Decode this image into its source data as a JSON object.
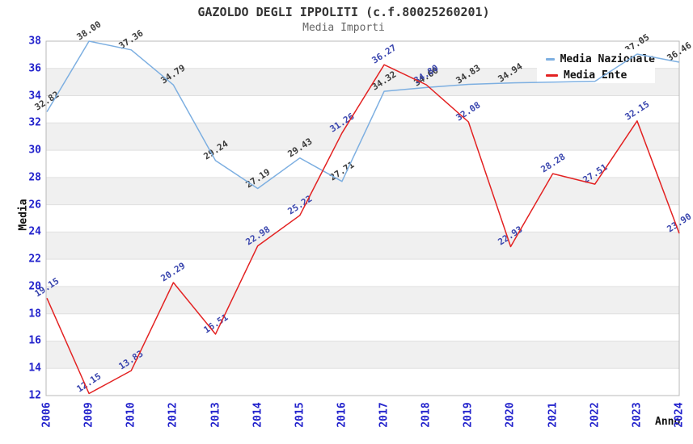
{
  "chart_data": {
    "type": "line",
    "title": "GAZOLDO DEGLI IPPOLITI (c.f.80025260201)",
    "subtitle": "Media Importi",
    "xlabel": "Anno",
    "ylabel": "Media",
    "categories": [
      "2006",
      "2009",
      "2010",
      "2012",
      "2013",
      "2014",
      "2015",
      "2016",
      "2017",
      "2018",
      "2019",
      "2020",
      "2021",
      "2022",
      "2023",
      "2024"
    ],
    "ylim": [
      12,
      38
    ],
    "yticks": [
      12,
      14,
      16,
      18,
      20,
      22,
      24,
      26,
      28,
      30,
      32,
      34,
      36,
      38
    ],
    "grid": "horizontal-bands",
    "legend_position": "top-right",
    "series": [
      {
        "name": "Media Nazionale",
        "color": "#7dafe1",
        "label_color": "#3c3c3c",
        "values": [
          32.82,
          38.0,
          37.36,
          34.79,
          29.24,
          27.19,
          29.43,
          27.71,
          34.32,
          34.6,
          34.83,
          34.94,
          35.0,
          35.05,
          37.05,
          36.46
        ],
        "labels": [
          "32.82",
          "38.00",
          "37.36",
          "34.79",
          "29.24",
          "27.19",
          "29.43",
          "27.71",
          "34.32",
          "34.60",
          "34.83",
          "34.94",
          "",
          "",
          "37.05",
          "36.46"
        ]
      },
      {
        "name": "Media Ente",
        "color": "#e32222",
        "label_color": "#3a46ae",
        "values": [
          19.15,
          12.15,
          13.83,
          20.29,
          16.51,
          22.98,
          25.22,
          31.26,
          36.27,
          34.8,
          32.08,
          22.93,
          28.28,
          27.51,
          32.15,
          23.9
        ],
        "labels": [
          "19.15",
          "12.15",
          "13.83",
          "20.29",
          "16.51",
          "22.98",
          "25.22",
          "31.26",
          "36.27",
          "34.80",
          "32.08",
          "22.93",
          "28.28",
          "27.51",
          "32.15",
          "23.90"
        ]
      }
    ],
    "style": {
      "band_color": "#f0f0f0",
      "gridline_color": "#e0e0e0",
      "frame_color": "#b8b8b8",
      "tick_color": "#2222cc",
      "background": "#ffffff"
    }
  }
}
